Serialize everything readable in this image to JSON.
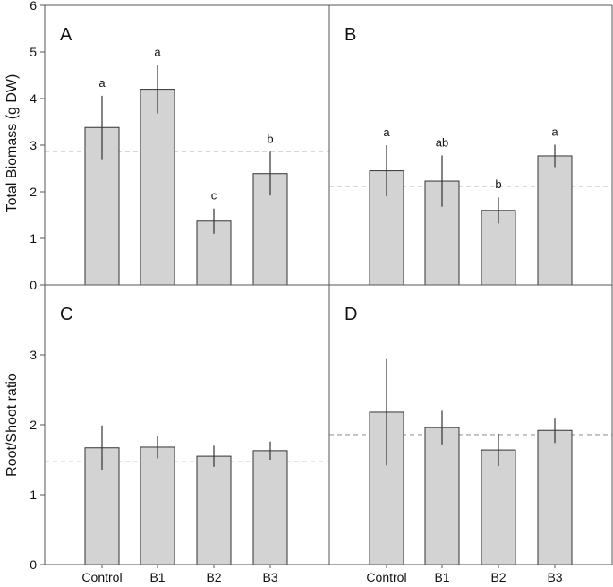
{
  "chart_data": {
    "type": "bar",
    "categories": [
      "Control",
      "B1",
      "B2",
      "B3"
    ],
    "panels": [
      {
        "id": "A",
        "label": "A",
        "ylabel": "Total Biomass (g DW)",
        "ylim": [
          0,
          6
        ],
        "yticks": [
          "0",
          "1",
          "2",
          "3",
          "4",
          "5",
          "6"
        ],
        "values": [
          3.38,
          4.2,
          1.37,
          2.39
        ],
        "errors": [
          0.68,
          0.52,
          0.27,
          0.47
        ],
        "sig_letters": [
          "a",
          "a",
          "c",
          "b"
        ],
        "reference_line": 2.87
      },
      {
        "id": "B",
        "label": "B",
        "ylabel": "",
        "ylim": [
          0,
          6
        ],
        "values": [
          2.45,
          2.23,
          1.6,
          2.77
        ],
        "errors": [
          0.55,
          0.55,
          0.28,
          0.24
        ],
        "sig_letters": [
          "a",
          "ab",
          "b",
          "a"
        ],
        "reference_line": 2.12
      },
      {
        "id": "C",
        "label": "C",
        "ylabel": "Root/Shoot ratio",
        "ylim": [
          0,
          4
        ],
        "yticks": [
          "0",
          "1",
          "2",
          "3"
        ],
        "values": [
          1.67,
          1.68,
          1.55,
          1.63
        ],
        "errors": [
          0.32,
          0.16,
          0.15,
          0.13
        ],
        "sig_letters": [
          "",
          "",
          "",
          ""
        ],
        "reference_line": 1.47
      },
      {
        "id": "D",
        "label": "D",
        "ylabel": "",
        "ylim": [
          0,
          4
        ],
        "values": [
          2.18,
          1.96,
          1.64,
          1.92
        ],
        "errors": [
          0.76,
          0.24,
          0.23,
          0.18
        ],
        "sig_letters": [
          "",
          "",
          "",
          ""
        ],
        "reference_line": 1.86
      }
    ],
    "colors": {
      "bar_fill": "#d3d3d3",
      "bar_stroke": "#333333",
      "axis": "#555555",
      "reference_line": "#999999"
    },
    "grid": false,
    "legend": "none"
  }
}
